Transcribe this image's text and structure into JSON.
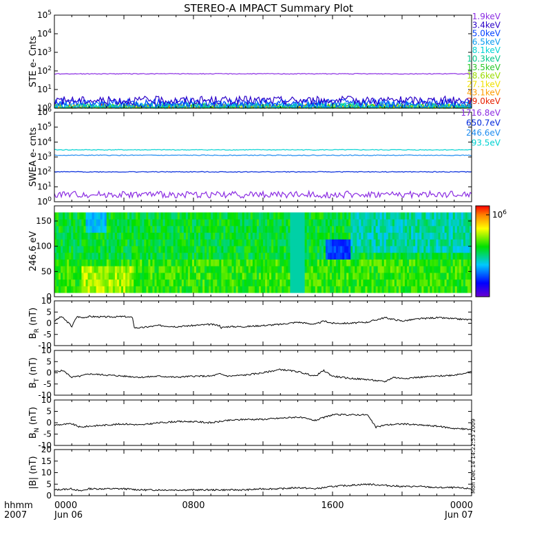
{
  "title": "STEREO-A IMPACT Summary Plot",
  "time_axis": {
    "corner_top": "hhmm",
    "corner_bottom": "2007",
    "ticks": [
      {
        "hours": 0,
        "top": "0000",
        "bottom": "Jun 06"
      },
      {
        "hours": 8,
        "top": "0800",
        "bottom": ""
      },
      {
        "hours": 16,
        "top": "1600",
        "bottom": ""
      },
      {
        "hours": 24,
        "top": "0000",
        "bottom": "Jun 07"
      }
    ],
    "range_hours": [
      0,
      24
    ]
  },
  "side_stamp": "Mon Dec 14 14:22:53 2009",
  "chart_data": [
    {
      "id": "ste",
      "type": "line",
      "ylabel": "STE e- Cnts",
      "yscale": "log",
      "ylim": [
        1,
        100000
      ],
      "ytick_labels": [
        "10^0",
        "10^1",
        "10^2",
        "10^3",
        "10^4",
        "10^5"
      ],
      "series": [
        {
          "name": "1.9keV",
          "color": "#8a2be2",
          "value": 70
        },
        {
          "name": "3.4keV",
          "color": "#2a00c8",
          "value": 2.6
        },
        {
          "name": "5.0keV",
          "color": "#0040ff",
          "value": 1.9
        },
        {
          "name": "6.5keV",
          "color": "#0a9cf0",
          "value": 1.4
        },
        {
          "name": "8.1keV",
          "color": "#00d4d4",
          "value": 1.2
        },
        {
          "name": "10.3keV",
          "color": "#00c88c",
          "value": 1.1
        },
        {
          "name": "13.5keV",
          "color": "#28c828",
          "value": 1.05
        },
        {
          "name": "18.6keV",
          "color": "#9adc00",
          "value": 1.0
        },
        {
          "name": "27.1keV",
          "color": "#f0e000",
          "value": 1.0
        },
        {
          "name": "43.1keV",
          "color": "#ff9c00",
          "value": 1.0
        },
        {
          "name": "79.0keV",
          "color": "#e82000",
          "value": 1.0
        }
      ]
    },
    {
      "id": "swea",
      "type": "line",
      "ylabel": "SWEA e- cnts",
      "yscale": "log",
      "ylim": [
        1,
        1000000
      ],
      "ytick_labels": [
        "10^0",
        "10^1",
        "10^2",
        "10^3",
        "10^4",
        "10^5",
        "10^6"
      ],
      "series": [
        {
          "name": "1716.8eV",
          "color": "#8a2be2",
          "value": 3
        },
        {
          "name": "650.7eV",
          "color": "#0028dc",
          "value": 100
        },
        {
          "name": "246.6eV",
          "color": "#1e8cf0",
          "value": 1300
        },
        {
          "name": "93.5eV",
          "color": "#00d2d2",
          "value": 3000
        }
      ]
    },
    {
      "id": "pad",
      "type": "heatmap",
      "ylabel": "246.6 eV",
      "ylim": [
        0,
        180
      ],
      "yticks": [
        0,
        50,
        100,
        150
      ],
      "colorbar_label": "10^6"
    },
    {
      "id": "br",
      "type": "line",
      "ylabel": "B_R (nT)",
      "ylabel_main": "B",
      "ylabel_sub": "R",
      "ylabel_unit": "(nT)",
      "ylim": [
        -10,
        10
      ],
      "yticks": [
        -10,
        -5,
        0,
        5,
        10
      ],
      "series": [
        {
          "x": [
            0,
            0.4,
            0.9,
            1.0,
            1.3,
            1.6,
            2.0,
            3.0,
            4.0,
            4.5,
            4.6,
            5.0,
            5.5,
            6.0,
            7.0,
            8.0,
            9.0,
            9.5,
            9.6,
            10,
            11,
            12,
            13,
            14,
            15,
            15.5,
            16,
            17,
            18,
            19,
            20,
            21,
            22,
            23,
            24
          ],
          "y": [
            1,
            3,
            -0.5,
            -1.5,
            3,
            2.5,
            3,
            2.8,
            3,
            2.5,
            -2,
            -2,
            -1.5,
            -1,
            -1.5,
            -1,
            -0.5,
            -1,
            -2,
            -1.5,
            -1.5,
            -1,
            -0.5,
            0.5,
            -0.5,
            1,
            0,
            0,
            0.5,
            2.5,
            1,
            2,
            2.5,
            2,
            1.5
          ]
        }
      ]
    },
    {
      "id": "bt",
      "type": "line",
      "ylabel": "B_T (nT)",
      "ylabel_main": "B",
      "ylabel_sub": "T",
      "ylabel_unit": "(nT)",
      "ylim": [
        -10,
        10
      ],
      "yticks": [
        -10,
        -5,
        0,
        5,
        10
      ],
      "series": [
        {
          "x": [
            0,
            0.5,
            1,
            1.5,
            2,
            3,
            4,
            5,
            6,
            7,
            8,
            9,
            9.5,
            10,
            11,
            12,
            13,
            14,
            15,
            15.5,
            16,
            17,
            18,
            19,
            19.5,
            20,
            21,
            22,
            23,
            24
          ],
          "y": [
            0.5,
            1,
            -2,
            -1.5,
            -0.5,
            -1,
            -1.5,
            -2,
            -1.5,
            -2,
            -1.5,
            -1.5,
            -0.5,
            -1.5,
            -1,
            0,
            1.5,
            0.5,
            -1.5,
            1,
            -1.5,
            -2.5,
            -3,
            -4,
            -2,
            -2.5,
            -2,
            -1.5,
            -1,
            0.5
          ]
        }
      ]
    },
    {
      "id": "bn",
      "type": "line",
      "ylabel": "B_N (nT)",
      "ylabel_main": "B",
      "ylabel_sub": "N",
      "ylabel_unit": "(nT)",
      "ylim": [
        -10,
        10
      ],
      "yticks": [
        -10,
        -5,
        0,
        5,
        10
      ],
      "series": [
        {
          "x": [
            0,
            1,
            1.5,
            2,
            3,
            4,
            5,
            6,
            7,
            8,
            9,
            10,
            11,
            12,
            13,
            14,
            15,
            16,
            17,
            18,
            18.5,
            19,
            20,
            21,
            22,
            23,
            24
          ],
          "y": [
            -1,
            -0.5,
            -2,
            -1.5,
            -1,
            -0.5,
            -1,
            0,
            0.5,
            0.5,
            0,
            1,
            1.5,
            1.5,
            2,
            2.5,
            1,
            3.5,
            3.5,
            3.5,
            -2,
            -1,
            -0.5,
            -1,
            -1.5,
            -2.5,
            -3
          ]
        }
      ]
    },
    {
      "id": "bmag",
      "type": "line",
      "ylabel": "|B| (nT)",
      "ylim": [
        0,
        20
      ],
      "yticks": [
        0,
        5,
        10,
        15,
        20
      ],
      "series": [
        {
          "x": [
            0,
            1,
            1.5,
            2,
            3,
            4,
            5,
            6,
            7,
            8,
            9,
            10,
            11,
            12,
            13,
            14,
            15,
            16,
            17,
            18,
            19,
            20,
            21,
            22,
            23,
            24
          ],
          "y": [
            2.5,
            3,
            2,
            3,
            3,
            3,
            2.5,
            2.5,
            2.5,
            2.5,
            2.5,
            2.5,
            2.5,
            3,
            3,
            3.5,
            3,
            4,
            4.5,
            5,
            4.5,
            4,
            4,
            3.5,
            3.5,
            3
          ]
        }
      ]
    }
  ]
}
